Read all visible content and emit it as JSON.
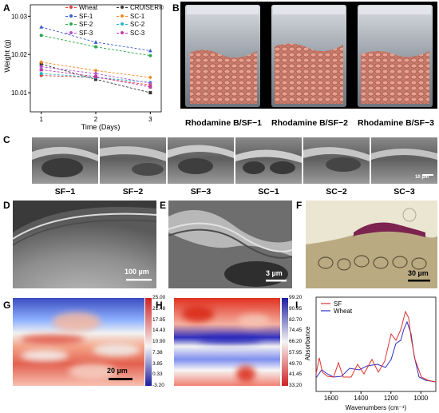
{
  "panels": {
    "A": "A",
    "B": "B",
    "C": "C",
    "D": "D",
    "E": "E",
    "F": "F",
    "G": "G",
    "H": "H",
    "I": "I"
  },
  "colors": {
    "Wheat": "#e8403f",
    "CRUISER®": "#333333",
    "SF-1": "#3b5ccc",
    "SF-2": "#2aa84a",
    "SF-3": "#b050d0",
    "SC-1": "#f08a20",
    "SC-2": "#22b5c8",
    "SC-3": "#bd3aa0",
    "spectrum_SF": "#e03030",
    "spectrum_Wheat": "#3030c0"
  },
  "chart_data": [
    {
      "type": "line",
      "panel": "A",
      "xlabel": "Time (Days)",
      "ylabel": "Weight (g)",
      "x": [
        1,
        2,
        3
      ],
      "xticks": [
        "1",
        "2",
        "3"
      ],
      "yticks": [
        "10.01",
        "10.02",
        "10.03"
      ],
      "xlim": [
        0.8,
        3.2
      ],
      "ylim": [
        10.005,
        10.033
      ],
      "legend_position": "top-right",
      "series": [
        {
          "name": "Wheat",
          "values": [
            10.0145,
            10.014,
            10.012
          ]
        },
        {
          "name": "CRUISER®",
          "values": [
            10.0175,
            10.0135,
            10.01
          ]
        },
        {
          "name": "SF-1",
          "values": [
            10.0272,
            10.0232,
            10.021
          ]
        },
        {
          "name": "SC-1",
          "values": [
            10.018,
            10.0158,
            10.014
          ]
        },
        {
          "name": "SF-2",
          "values": [
            10.025,
            10.022,
            10.0197
          ]
        },
        {
          "name": "SC-2",
          "values": [
            10.015,
            10.014,
            10.0127
          ]
        },
        {
          "name": "SF-3",
          "values": [
            10.0168,
            10.015,
            10.0125
          ]
        },
        {
          "name": "SC-3",
          "values": [
            10.016,
            10.0142,
            10.0115
          ]
        }
      ]
    },
    {
      "type": "heatmap",
      "panel": "G",
      "colorbar_ticks": [
        "25.00",
        "21.48",
        "17.95",
        "14.43",
        "10.90",
        "7.38",
        "3.85",
        "0.33",
        "-3.20"
      ],
      "scalebar": "20 µm"
    },
    {
      "type": "heatmap",
      "panel": "H",
      "colorbar_ticks": [
        "99.20",
        "90.95",
        "82.70",
        "74.45",
        "66.20",
        "57.95",
        "49.70",
        "41.45",
        "33.20"
      ]
    },
    {
      "type": "line",
      "panel": "I",
      "xlabel": "Wavenumbers (cm⁻¹)",
      "ylabel": "Absorbance",
      "xticks": [
        "1600",
        "1400",
        "1200",
        "1000"
      ],
      "xlim": [
        1700,
        900
      ],
      "legend_position": "top-left",
      "series": [
        {
          "name": "SF"
        },
        {
          "name": "Wheat"
        }
      ]
    }
  ],
  "B_captions": [
    "Rhodamine B/SF−1",
    "Rhodamine B/SF−2",
    "Rhodamine B/SF−3"
  ],
  "C_captions": [
    "SF−1",
    "SF−2",
    "SF−3",
    "SC−1",
    "SC−2",
    "SC−3"
  ],
  "C_scalebar": "10 µm",
  "D_scalebar": "100 µm",
  "E_scalebar": "3 µm",
  "F_scalebar": "30 µm"
}
